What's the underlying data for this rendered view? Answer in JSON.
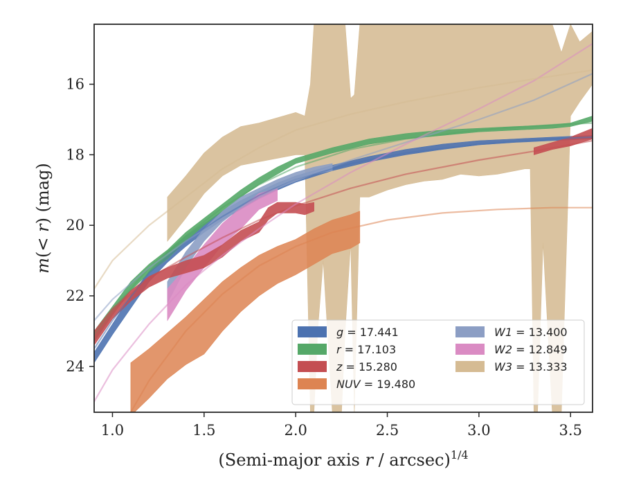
{
  "chart_data": {
    "type": "area",
    "xlabel_main": "(Semi-major axis ",
    "xlabel_var": "r",
    "xlabel_rest": " / arcsec)",
    "xlabel_sup": "1/4",
    "ylabel_m": "m",
    "ylabel_mid": "(< ",
    "ylabel_r": "r",
    "ylabel_end": ") (mag)",
    "xlim": [
      0.9,
      3.62
    ],
    "ylim": [
      25.3,
      14.3
    ],
    "x_inverted": false,
    "y_inverted": true,
    "xticks": [
      1.0,
      1.5,
      2.0,
      2.5,
      3.0,
      3.5
    ],
    "xtick_labels": [
      "1.0",
      "1.5",
      "2.0",
      "2.5",
      "3.0",
      "3.5"
    ],
    "yticks": [
      16,
      18,
      20,
      22,
      24
    ],
    "ytick_labels": [
      "16",
      "18",
      "20",
      "22",
      "24"
    ],
    "grid": false,
    "legend_position": "lower-right",
    "legend_columns": 2,
    "series": [
      {
        "name": "g",
        "label_value": "= 17.441",
        "color": "#4c72b0",
        "band_x": [
          0.9,
          1.0,
          1.1,
          1.2,
          1.3,
          1.4,
          1.5,
          1.6,
          1.7,
          1.8,
          1.9,
          2.0,
          2.2,
          2.4,
          2.6,
          2.8,
          3.0,
          3.2,
          3.4,
          3.62
        ],
        "band_lo": [
          23.6,
          22.8,
          22.0,
          21.3,
          20.75,
          20.3,
          19.95,
          19.6,
          19.3,
          19.05,
          18.8,
          18.6,
          18.3,
          18.05,
          17.85,
          17.7,
          17.6,
          17.55,
          17.5,
          17.45
        ],
        "band_hi": [
          23.9,
          23.1,
          22.35,
          21.6,
          21.05,
          20.6,
          20.2,
          19.85,
          19.55,
          19.25,
          19.0,
          18.78,
          18.45,
          18.2,
          18.0,
          17.85,
          17.72,
          17.65,
          17.6,
          17.55
        ],
        "model_x": [
          0.9,
          1.0,
          1.2,
          1.4,
          1.6,
          1.8,
          2.0,
          2.3,
          2.6,
          3.0,
          3.4,
          3.62
        ],
        "model_y": [
          23.5,
          22.7,
          21.35,
          20.45,
          19.75,
          19.15,
          18.7,
          18.25,
          17.95,
          17.7,
          17.55,
          17.5
        ]
      },
      {
        "name": "r",
        "label_value": "= 17.103",
        "color": "#55a868",
        "band_x": [
          0.9,
          1.0,
          1.1,
          1.2,
          1.3,
          1.4,
          1.5,
          1.6,
          1.7,
          1.8,
          1.9,
          2.0,
          2.2,
          2.4,
          2.6,
          2.8,
          3.0,
          3.2,
          3.4,
          3.5,
          3.62
        ],
        "band_lo": [
          23.0,
          22.3,
          21.6,
          21.1,
          20.7,
          20.2,
          19.8,
          19.4,
          19.0,
          18.65,
          18.35,
          18.1,
          17.8,
          17.55,
          17.4,
          17.3,
          17.25,
          17.2,
          17.15,
          17.1,
          16.9
        ],
        "band_hi": [
          23.3,
          22.55,
          21.85,
          21.35,
          20.95,
          20.45,
          20.0,
          19.6,
          19.2,
          18.85,
          18.55,
          18.25,
          17.95,
          17.7,
          17.55,
          17.45,
          17.35,
          17.3,
          17.25,
          17.2,
          17.05
        ],
        "model_x": [
          0.9,
          1.0,
          1.2,
          1.4,
          1.6,
          1.8,
          2.0,
          2.3,
          2.6,
          3.0,
          3.4,
          3.62
        ],
        "model_y": [
          23.1,
          22.4,
          21.2,
          20.3,
          19.5,
          18.85,
          18.35,
          17.85,
          17.55,
          17.3,
          17.15,
          17.1
        ]
      },
      {
        "name": "z",
        "label_value": "= 15.280",
        "color": "#c44e52",
        "band_x": [
          0.9,
          1.0,
          1.1,
          1.2,
          1.3,
          1.4,
          1.5,
          1.6,
          1.7,
          1.8,
          1.85,
          1.9,
          2.0,
          2.05,
          2.1
        ],
        "band_lo": [
          23.0,
          22.35,
          21.85,
          21.45,
          21.2,
          21.0,
          20.85,
          20.55,
          20.15,
          19.9,
          19.5,
          19.35,
          19.35,
          19.4,
          19.35
        ],
        "band_hi": [
          23.4,
          22.65,
          22.15,
          21.75,
          21.5,
          21.35,
          21.2,
          20.9,
          20.45,
          20.2,
          19.85,
          19.65,
          19.65,
          19.7,
          19.6
        ],
        "band2_x": [
          3.3,
          3.4,
          3.5,
          3.62
        ],
        "band2_lo": [
          17.8,
          17.65,
          17.5,
          17.25
        ],
        "band2_hi": [
          18.0,
          17.85,
          17.75,
          17.55
        ],
        "model_x": [
          0.9,
          1.0,
          1.2,
          1.4,
          1.6,
          1.8,
          2.0,
          2.3,
          2.6,
          3.0,
          3.3,
          3.62
        ],
        "model_y": [
          23.1,
          22.4,
          21.5,
          20.9,
          20.35,
          19.85,
          19.45,
          18.95,
          18.55,
          18.15,
          17.9,
          17.6
        ]
      },
      {
        "name": "NUV",
        "label_value": "= 19.480",
        "color": "#dd8452",
        "band_x": [
          1.1,
          1.2,
          1.3,
          1.4,
          1.5,
          1.6,
          1.7,
          1.8,
          1.9,
          2.0,
          2.1,
          2.2,
          2.3,
          2.35
        ],
        "band_lo": [
          23.9,
          23.5,
          23.05,
          22.6,
          22.1,
          21.6,
          21.2,
          20.85,
          20.6,
          20.4,
          20.1,
          19.85,
          19.7,
          19.6
        ],
        "band_hi": [
          25.4,
          24.9,
          24.35,
          23.95,
          23.65,
          23.0,
          22.45,
          22.0,
          21.65,
          21.4,
          21.1,
          20.8,
          20.65,
          20.5
        ],
        "model_x": [
          1.1,
          1.2,
          1.4,
          1.6,
          1.8,
          2.0,
          2.2,
          2.5,
          2.8,
          3.1,
          3.4,
          3.62
        ],
        "model_y": [
          25.3,
          24.4,
          23.0,
          21.95,
          21.15,
          20.6,
          20.2,
          19.85,
          19.65,
          19.55,
          19.5,
          19.5
        ]
      },
      {
        "name": "W1",
        "label_value": "= 13.400",
        "color": "#8c9ec4",
        "band_x": [
          1.3,
          1.4,
          1.5,
          1.6,
          1.7,
          1.8,
          1.9,
          2.0,
          2.1,
          2.2
        ],
        "band_lo": [
          21.6,
          20.75,
          20.1,
          19.6,
          19.2,
          18.95,
          18.7,
          18.5,
          18.35,
          18.25
        ],
        "band_hi": [
          22.2,
          21.2,
          20.45,
          19.9,
          19.5,
          19.2,
          18.95,
          18.75,
          18.55,
          18.45
        ],
        "model_x": [
          0.9,
          1.0,
          1.2,
          1.4,
          1.6,
          1.8,
          2.0,
          2.3,
          2.6,
          3.0,
          3.3,
          3.62
        ],
        "model_y": [
          22.7,
          22.1,
          21.2,
          20.45,
          19.8,
          19.2,
          18.7,
          18.15,
          17.65,
          17.0,
          16.45,
          15.7
        ]
      },
      {
        "name": "W2",
        "label_value": "= 12.849",
        "color": "#da8bc3",
        "band_x": [
          1.3,
          1.4,
          1.5,
          1.6,
          1.7,
          1.8,
          1.9
        ],
        "band_lo": [
          21.8,
          21.2,
          20.55,
          19.95,
          19.5,
          19.1,
          18.95
        ],
        "band_hi": [
          22.7,
          21.85,
          21.2,
          20.55,
          20.1,
          19.55,
          19.3
        ],
        "model_x": [
          0.9,
          1.0,
          1.2,
          1.4,
          1.6,
          1.8,
          2.0,
          2.3,
          2.6,
          3.0,
          3.3,
          3.62
        ],
        "model_y": [
          25.0,
          24.1,
          22.8,
          21.7,
          20.85,
          20.1,
          19.4,
          18.5,
          17.7,
          16.7,
          15.9,
          14.85
        ]
      },
      {
        "name": "W3",
        "label_value": "= 13.333",
        "color": "#d5bb93",
        "band_x": [
          1.3,
          1.4,
          1.5,
          1.6,
          1.7,
          1.8,
          1.9,
          2.0,
          2.05,
          2.08,
          2.1,
          2.12,
          2.15,
          2.2,
          2.25,
          2.27,
          2.3,
          2.32,
          2.35,
          2.4,
          2.5,
          2.6,
          2.7,
          2.8,
          2.9,
          3.0,
          3.1,
          3.2,
          3.25,
          3.28,
          3.3,
          3.32,
          3.35,
          3.4,
          3.45,
          3.5,
          3.55,
          3.62
        ],
        "band_lo": [
          20.45,
          19.8,
          19.1,
          18.6,
          18.3,
          18.2,
          18.1,
          18.0,
          18.0,
          25.3,
          25.3,
          23.0,
          21.0,
          25.3,
          25.3,
          23.0,
          20.5,
          25.3,
          19.2,
          19.2,
          19.0,
          18.85,
          18.75,
          18.7,
          18.55,
          18.6,
          18.55,
          18.45,
          18.4,
          18.4,
          25.3,
          25.3,
          20.5,
          25.3,
          25.3,
          16.9,
          16.5,
          16.0
        ],
        "band_hi": [
          19.2,
          18.6,
          17.95,
          17.5,
          17.2,
          17.1,
          16.95,
          16.8,
          16.9,
          16.0,
          14.3,
          14.3,
          14.3,
          14.3,
          14.3,
          14.3,
          16.4,
          16.3,
          14.3,
          14.3,
          14.3,
          14.3,
          14.3,
          14.3,
          14.3,
          14.3,
          14.3,
          14.3,
          14.3,
          14.3,
          14.3,
          14.3,
          14.3,
          14.3,
          15.1,
          14.3,
          14.8,
          14.5
        ],
        "model_x": [
          0.9,
          1.0,
          1.2,
          1.4,
          1.6,
          1.8,
          2.0,
          2.3,
          2.6,
          3.0,
          3.3,
          3.62
        ],
        "model_y": [
          21.8,
          21.0,
          20.0,
          19.2,
          18.4,
          17.8,
          17.3,
          16.85,
          16.5,
          16.1,
          15.85,
          15.6
        ]
      }
    ]
  }
}
